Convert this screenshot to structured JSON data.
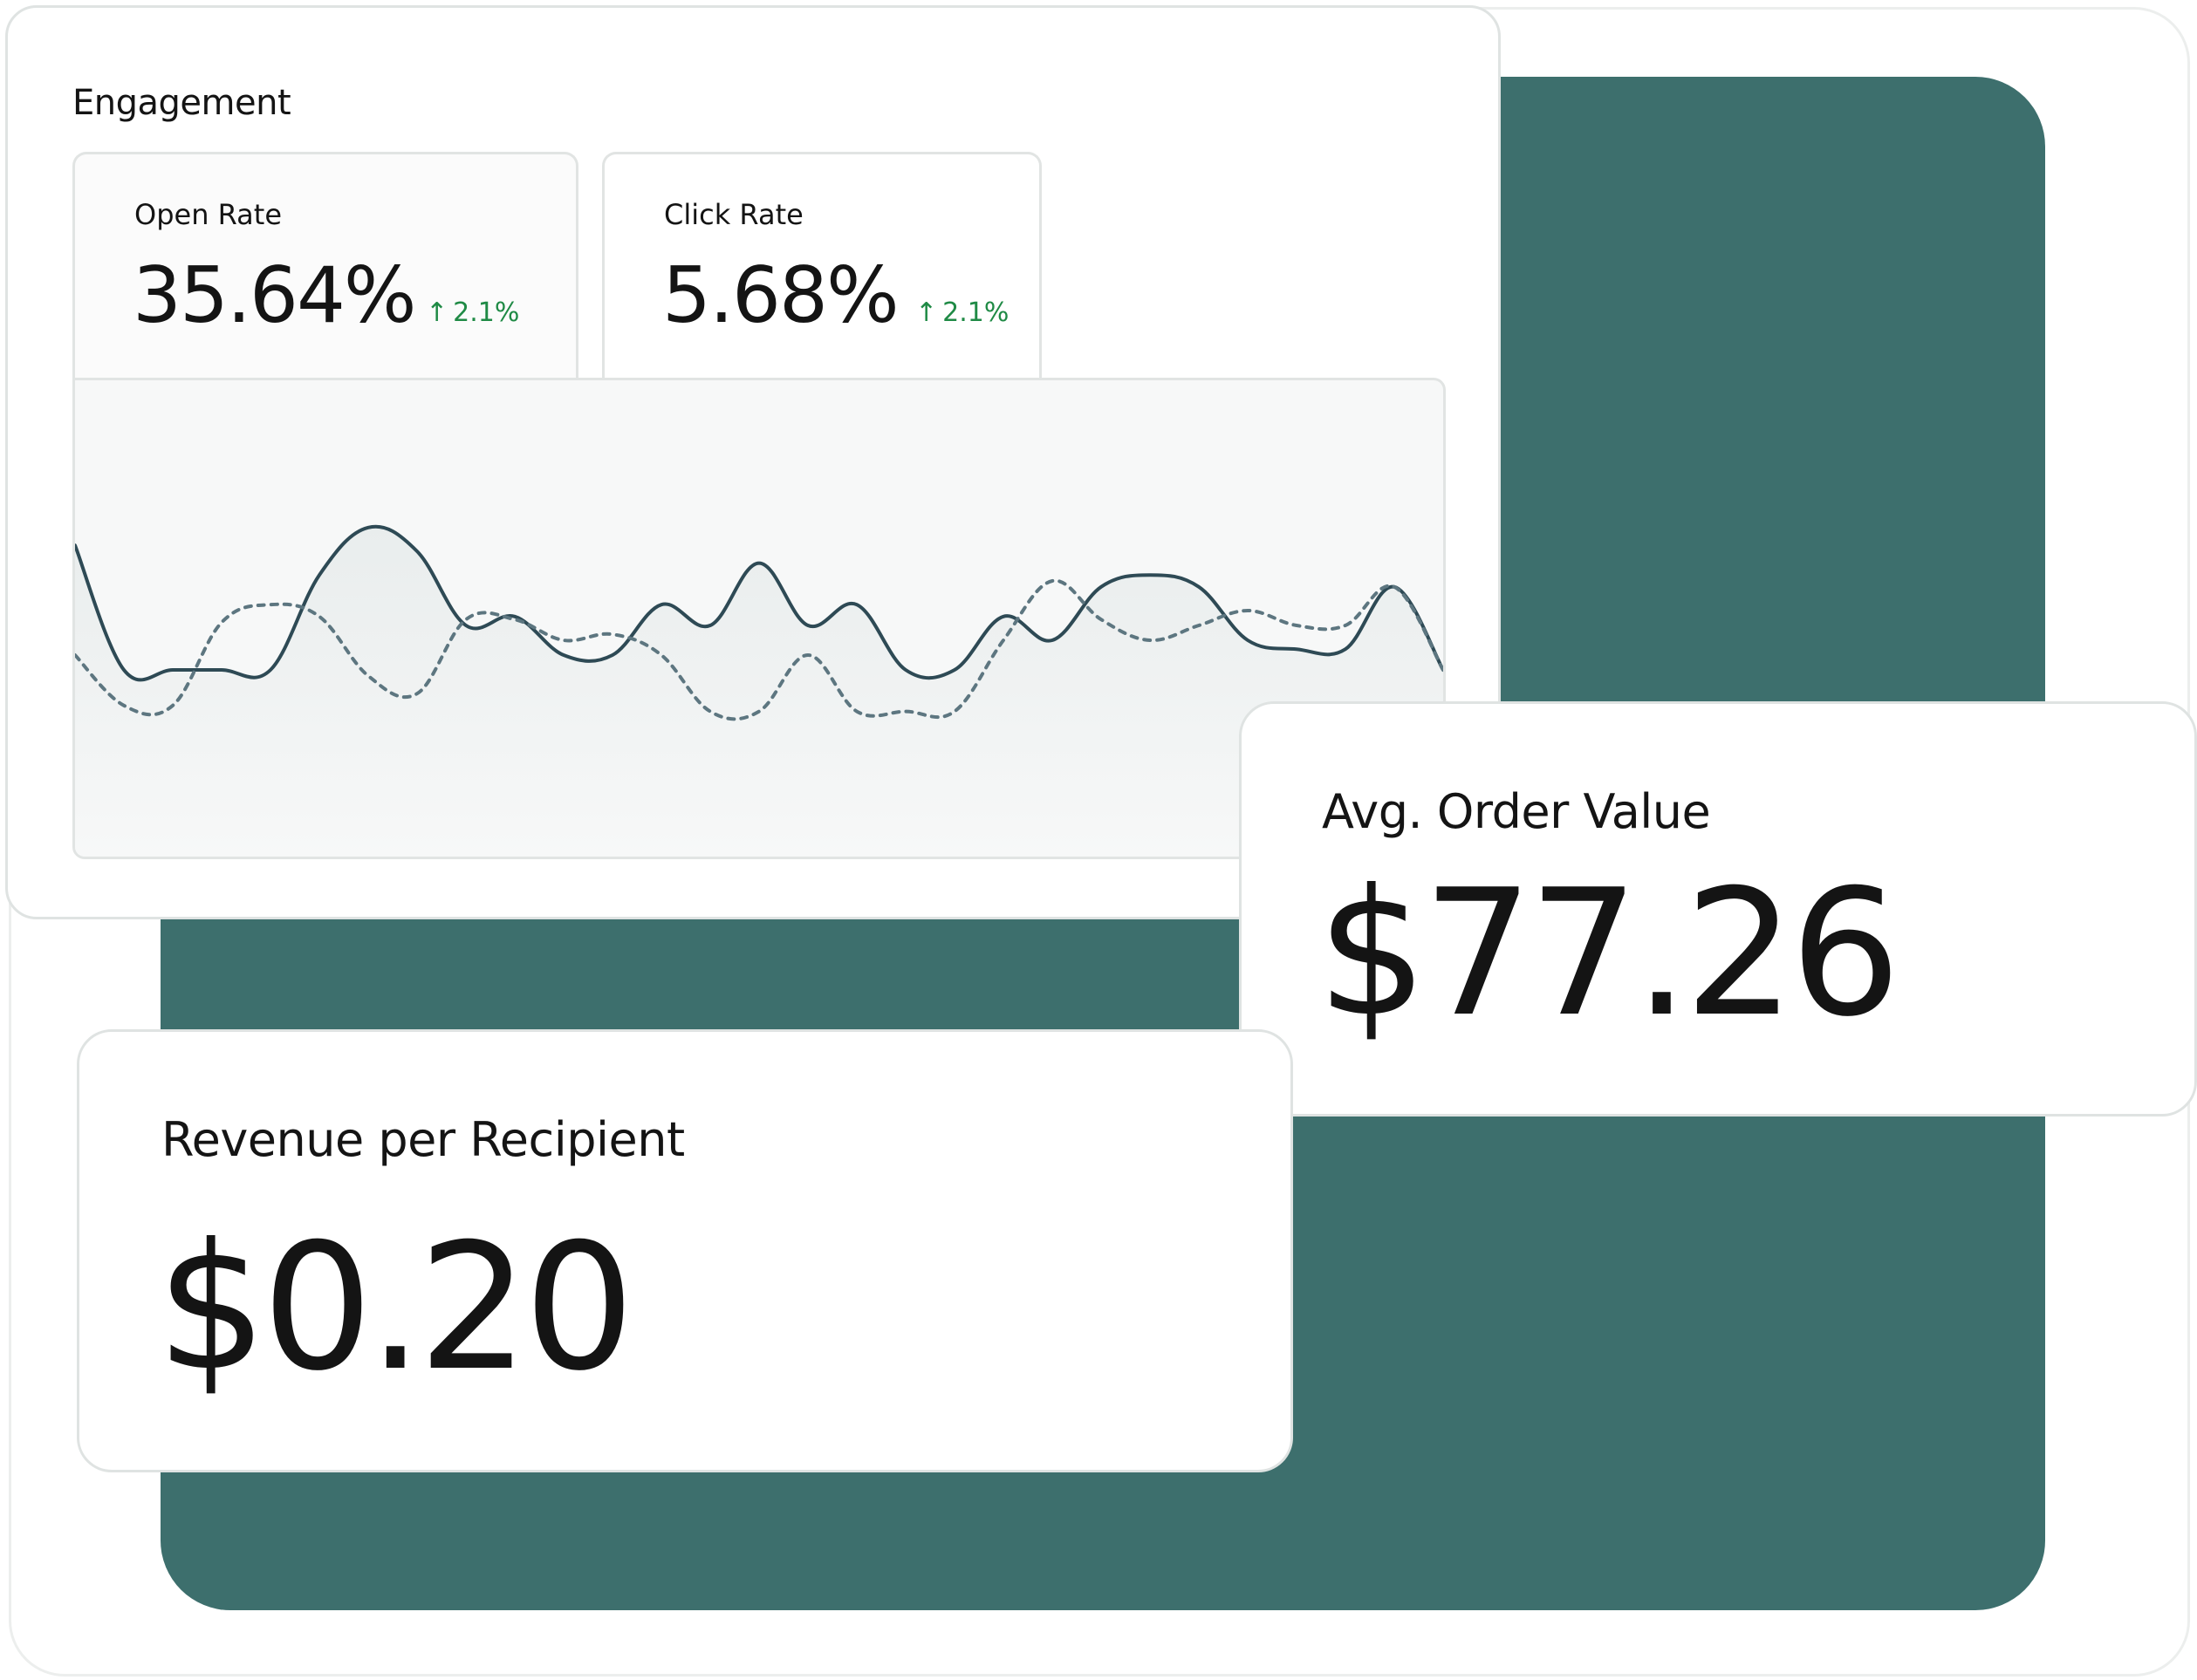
{
  "colors": {
    "panel": "#3d6f6d",
    "positive": "#1f8a45",
    "line": "#2e4a55",
    "dotted": "#5d7680"
  },
  "engagement": {
    "title": "Engagement",
    "tabs": [
      {
        "label": "Open Rate",
        "value": "35.64%",
        "delta": "2.1%",
        "delta_icon": "arrow-up-icon"
      },
      {
        "label": "Click Rate",
        "value": "5.68%",
        "delta": "2.1%",
        "delta_icon": "arrow-up-icon"
      }
    ]
  },
  "avg_order_value": {
    "label": "Avg. Order Value",
    "value": "$77.26"
  },
  "revenue_per_recipient": {
    "label": "Revenue per Recipient",
    "value": "$0.20"
  },
  "chart_data": {
    "type": "line",
    "x": [
      0,
      1,
      2,
      3,
      4,
      5,
      6,
      7,
      8,
      9,
      10,
      11,
      12,
      13,
      14,
      15,
      16,
      17,
      18,
      19,
      20,
      21,
      22,
      23,
      24,
      25,
      26,
      27,
      28
    ],
    "series": [
      {
        "values": [
          62,
          20,
          20,
          20,
          20,
          52,
          68,
          60,
          35,
          38,
          25,
          25,
          42,
          35,
          56,
          35,
          42,
          20,
          20,
          38,
          30,
          48,
          52,
          48,
          30,
          27,
          27,
          48,
          20
        ]
      },
      {
        "values": [
          25,
          8,
          8,
          36,
          42,
          38,
          18,
          12,
          37,
          37,
          30,
          32,
          25,
          6,
          6,
          25,
          6,
          6,
          6,
          30,
          50,
          37,
          30,
          35,
          40,
          35,
          35,
          48,
          20
        ]
      }
    ],
    "ylim": [
      0,
      100
    ]
  }
}
